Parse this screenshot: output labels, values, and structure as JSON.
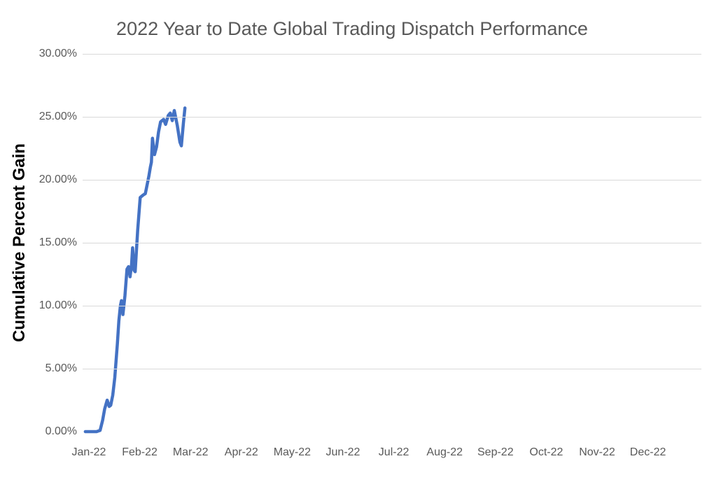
{
  "chart_data": {
    "type": "line",
    "title": "2022 Year to Date Global Trading Dispatch Performance",
    "ylabel": "Cumulative Percent Gain",
    "xlabel": "",
    "x_tick_labels": [
      "Jan-22",
      "Feb-22",
      "Mar-22",
      "Apr-22",
      "May-22",
      "Jun-22",
      "Jul-22",
      "Aug-22",
      "Sep-22",
      "Oct-22",
      "Nov-22",
      "Dec-22"
    ],
    "y_tick_labels": [
      "0.00%",
      "5.00%",
      "10.00%",
      "15.00%",
      "20.00%",
      "25.00%",
      "30.00%"
    ],
    "y_tick_values": [
      0,
      5,
      10,
      15,
      20,
      25,
      30
    ],
    "ylim": [
      0,
      30
    ],
    "grid": "horizontal-only, no gridline at 0%",
    "legend": "none",
    "line_color": "#4472C4",
    "gridline_color": "#d9d9d9",
    "title_color": "#595959",
    "tick_label_color": "#595959",
    "series": [
      {
        "name": "Cumulative Percent Gain",
        "x_unit": "months after Jan-22 tick (0 = Jan-22, 1 = Feb-22, 2 = Mar-22)",
        "y_unit": "cumulative percent gain",
        "points": [
          [
            -0.07,
            0.0
          ],
          [
            0.05,
            0.0
          ],
          [
            0.15,
            0.0
          ],
          [
            0.22,
            0.1
          ],
          [
            0.27,
            0.9
          ],
          [
            0.31,
            1.8
          ],
          [
            0.36,
            2.5
          ],
          [
            0.4,
            2.0
          ],
          [
            0.43,
            2.1
          ],
          [
            0.47,
            2.9
          ],
          [
            0.51,
            4.3
          ],
          [
            0.53,
            5.4
          ],
          [
            0.56,
            7.0
          ],
          [
            0.59,
            8.8
          ],
          [
            0.62,
            10.0
          ],
          [
            0.64,
            10.4
          ],
          [
            0.67,
            9.3
          ],
          [
            0.71,
            10.8
          ],
          [
            0.75,
            12.9
          ],
          [
            0.78,
            13.1
          ],
          [
            0.81,
            12.3
          ],
          [
            0.84,
            13.3
          ],
          [
            0.86,
            14.6
          ],
          [
            0.89,
            12.8
          ],
          [
            0.91,
            12.7
          ],
          [
            0.93,
            14.0
          ],
          [
            0.96,
            16.0
          ],
          [
            0.99,
            17.6
          ],
          [
            1.01,
            18.6
          ],
          [
            1.07,
            18.8
          ],
          [
            1.11,
            18.9
          ],
          [
            1.14,
            19.5
          ],
          [
            1.18,
            20.3
          ],
          [
            1.21,
            21.0
          ],
          [
            1.23,
            21.4
          ],
          [
            1.25,
            23.3
          ],
          [
            1.29,
            22.0
          ],
          [
            1.33,
            22.6
          ],
          [
            1.37,
            23.8
          ],
          [
            1.41,
            24.6
          ],
          [
            1.47,
            24.8
          ],
          [
            1.51,
            24.4
          ],
          [
            1.56,
            25.1
          ],
          [
            1.6,
            25.3
          ],
          [
            1.64,
            24.7
          ],
          [
            1.68,
            25.5
          ],
          [
            1.74,
            24.3
          ],
          [
            1.79,
            23.0
          ],
          [
            1.82,
            22.7
          ],
          [
            1.86,
            24.5
          ],
          [
            1.89,
            25.7
          ]
        ]
      }
    ]
  }
}
